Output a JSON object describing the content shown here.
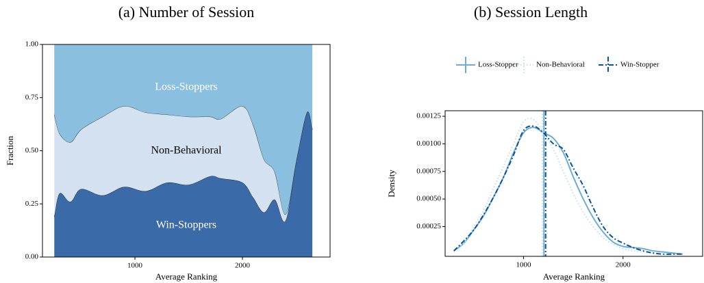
{
  "chart_data": [
    {
      "type": "stacked-area",
      "title": "(a) Number of Session",
      "xlabel": "Average Ranking",
      "ylabel": "Fraction",
      "x": [
        250,
        300,
        400,
        500,
        700,
        900,
        1100,
        1300,
        1500,
        1700,
        1800,
        2000,
        2100,
        2200,
        2300,
        2400,
        2500,
        2600,
        2650
      ],
      "series": [
        {
          "name": "Win-Stoppers",
          "color": "#3a6aa8",
          "label_color": "#ffffff",
          "values": [
            0.19,
            0.3,
            0.26,
            0.32,
            0.29,
            0.33,
            0.31,
            0.35,
            0.34,
            0.38,
            0.37,
            0.35,
            0.28,
            0.21,
            0.27,
            0.17,
            0.45,
            0.68,
            0.6
          ]
        },
        {
          "name": "Non-Behavioral",
          "color": "#d4e1f1",
          "label_color": "#000000",
          "values": [
            0.48,
            0.28,
            0.28,
            0.28,
            0.37,
            0.38,
            0.37,
            0.32,
            0.32,
            0.28,
            0.28,
            0.36,
            0.34,
            0.25,
            0.13,
            0.03,
            0,
            0,
            0
          ]
        },
        {
          "name": "Loss-Stoppers",
          "color": "#8bbfdf",
          "label_color": "#ffffff",
          "values": [
            0.33,
            0.42,
            0.46,
            0.4,
            0.34,
            0.29,
            0.32,
            0.33,
            0.34,
            0.34,
            0.35,
            0.29,
            0.38,
            0.54,
            0.6,
            0.8,
            0.55,
            0.32,
            0.4
          ]
        }
      ],
      "xlim": [
        140,
        2815
      ],
      "ylim": [
        0,
        1
      ],
      "xticks": [
        1000,
        2000
      ],
      "yticks": [
        {
          "value": 0,
          "label": "0.00"
        },
        {
          "value": 0.25,
          "label": "0.25"
        },
        {
          "value": 0.5,
          "label": "0.50"
        },
        {
          "value": 0.75,
          "label": "0.75"
        },
        {
          "value": 1,
          "label": "1.00"
        }
      ]
    },
    {
      "type": "density",
      "title": "(b) Session Length",
      "xlabel": "Average Ranking",
      "ylabel": "Density",
      "legend": "top",
      "x": [
        300,
        400,
        500,
        600,
        700,
        800,
        900,
        1000,
        1100,
        1200,
        1300,
        1400,
        1500,
        1600,
        1700,
        1800,
        1900,
        2000,
        2100,
        2200,
        2300,
        2400,
        2500,
        2600
      ],
      "series": [
        {
          "name": "Loss-Stopper",
          "color": "#6aaed6",
          "dash": "solid",
          "mean": 1205,
          "values": [
            3e-05,
            0.0001,
            0.00022,
            0.00035,
            0.00052,
            0.0007,
            0.00092,
            0.0011,
            0.00115,
            0.0011,
            0.00105,
            0.00092,
            0.0007,
            0.0005,
            0.00033,
            0.0002,
            0.00011,
            7e-05,
            6e-05,
            5e-05,
            3e-05,
            2e-05,
            1e-05,
            0
          ]
        },
        {
          "name": "Non-Behavioral",
          "color": "#c6dbef",
          "dash": "dotted",
          "mean": 1190,
          "values": [
            2e-05,
            0.0001,
            0.00025,
            0.0004,
            0.0006,
            0.0008,
            0.001,
            0.0012,
            0.00122,
            0.0011,
            0.00095,
            0.00075,
            0.00055,
            0.00038,
            0.00025,
            0.00015,
            9e-05,
            5e-05,
            3e-05,
            2e-05,
            1e-05,
            0,
            0,
            0
          ]
        },
        {
          "name": "Win-Stopper",
          "color": "#08519c",
          "dash": "dashdot",
          "mean": 1222,
          "values": [
            3e-05,
            0.00012,
            0.00022,
            0.00036,
            0.00052,
            0.0007,
            0.0009,
            0.00112,
            0.00116,
            0.0011,
            0.001,
            0.00095,
            0.00078,
            0.00062,
            0.00042,
            0.00025,
            0.00015,
            0.0001,
            6e-05,
            3e-05,
            1e-05,
            0,
            0,
            0
          ]
        }
      ],
      "xlim": [
        212,
        2800
      ],
      "ylim": [
        -2e-05,
        0.0013
      ],
      "xticks": [
        1000,
        2000
      ],
      "yticks": [
        0.00025,
        {
          "value": 0.0005,
          "label": "0.00050"
        },
        0.00075,
        {
          "value": 0.001,
          "label": "0.00100"
        },
        0.00125
      ]
    }
  ]
}
